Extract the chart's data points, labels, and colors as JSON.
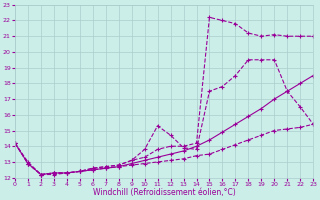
{
  "xlabel": "Windchill (Refroidissement éolien,°C)",
  "bg_color": "#cceee8",
  "grid_color": "#aacccc",
  "line_color": "#990099",
  "xlim": [
    0,
    23
  ],
  "ylim": [
    12,
    23
  ],
  "yticks": [
    12,
    13,
    14,
    15,
    16,
    17,
    18,
    19,
    20,
    21,
    22,
    23
  ],
  "xticks": [
    0,
    1,
    2,
    3,
    4,
    5,
    6,
    7,
    8,
    9,
    10,
    11,
    12,
    13,
    14,
    15,
    16,
    17,
    18,
    19,
    20,
    21,
    22,
    23
  ],
  "line1_x": [
    0,
    1,
    2,
    3,
    4,
    5,
    6,
    7,
    8,
    9,
    10,
    11,
    12,
    13,
    14,
    15,
    16,
    17,
    18,
    19,
    20,
    21,
    22,
    23
  ],
  "line1_y": [
    14.2,
    13.0,
    12.2,
    12.2,
    12.3,
    12.4,
    12.5,
    12.6,
    12.7,
    12.8,
    12.9,
    13.0,
    13.1,
    13.2,
    13.4,
    13.5,
    13.8,
    14.1,
    14.4,
    14.7,
    15.0,
    15.1,
    15.2,
    15.4
  ],
  "line2_x": [
    0,
    1,
    2,
    3,
    4,
    5,
    6,
    7,
    8,
    9,
    10,
    11,
    12,
    13,
    14,
    15,
    16,
    17,
    18,
    19,
    20,
    21,
    22,
    23
  ],
  "line2_y": [
    14.2,
    12.9,
    12.2,
    12.3,
    12.3,
    12.4,
    12.5,
    12.6,
    12.7,
    12.9,
    13.1,
    13.3,
    13.5,
    13.7,
    14.0,
    14.4,
    14.9,
    15.4,
    15.9,
    16.4,
    17.0,
    17.5,
    18.0,
    18.5
  ],
  "line3_x": [
    0,
    1,
    2,
    3,
    4,
    5,
    6,
    7,
    8,
    9,
    10,
    11,
    12,
    13,
    14,
    15,
    16,
    17,
    18,
    19,
    20,
    21,
    22,
    23
  ],
  "line3_y": [
    14.2,
    12.9,
    12.2,
    12.3,
    12.3,
    12.4,
    12.6,
    12.7,
    12.8,
    13.1,
    13.8,
    15.3,
    14.7,
    13.9,
    13.8,
    17.5,
    17.8,
    18.5,
    19.5,
    19.5,
    19.5,
    17.5,
    16.5,
    15.4
  ],
  "line4_x": [
    0,
    1,
    2,
    3,
    4,
    5,
    6,
    7,
    8,
    9,
    10,
    11,
    12,
    13,
    14,
    15,
    16,
    17,
    18,
    19,
    20,
    21,
    22,
    23
  ],
  "line4_y": [
    14.2,
    12.9,
    12.2,
    12.3,
    12.3,
    12.4,
    12.6,
    12.7,
    12.8,
    13.1,
    13.3,
    13.8,
    14.0,
    14.0,
    14.2,
    22.2,
    22.0,
    21.8,
    21.2,
    21.0,
    21.1,
    21.0,
    21.0,
    21.0
  ]
}
